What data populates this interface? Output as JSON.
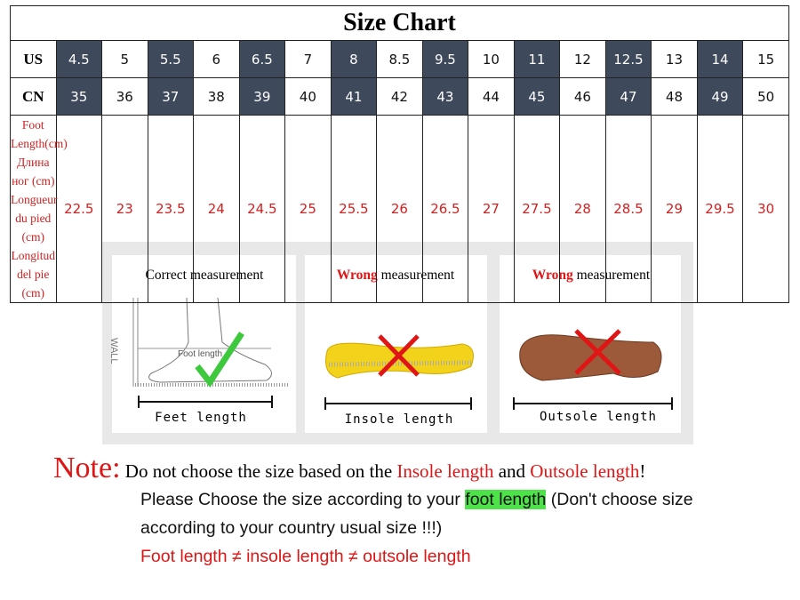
{
  "table": {
    "title": "Size Chart",
    "rows": [
      {
        "label": [
          "US"
        ],
        "values": [
          4.5,
          5,
          5.5,
          6,
          6.5,
          7,
          8,
          8.5,
          9.5,
          10,
          11,
          12,
          12.5,
          13,
          14,
          15
        ]
      },
      {
        "label": [
          "CN"
        ],
        "values": [
          35,
          36,
          37,
          38,
          39,
          40,
          41,
          42,
          43,
          44,
          45,
          46,
          47,
          48,
          49,
          50
        ]
      },
      {
        "label": [
          "Foot Length(cm)",
          "Длина ног (cm)",
          "Longueur du pied (cm)",
          "Longitud del pie (cm)"
        ],
        "values": [
          22.5,
          23,
          23.5,
          24,
          24.5,
          25,
          25.5,
          26,
          26.5,
          27,
          27.5,
          28,
          28.5,
          29,
          29.5,
          30
        ]
      }
    ]
  },
  "cards": [
    {
      "title": [
        "Correct measurement"
      ],
      "caption": "Feet length",
      "labels": [
        "WALL",
        "Foot length"
      ]
    },
    {
      "title": [
        "Wrong",
        " measurement"
      ],
      "caption": "Insole length"
    },
    {
      "title": [
        "Wrong",
        " measurement"
      ],
      "caption": "Outsole length"
    }
  ],
  "note": {
    "label": "Note:",
    "line1": [
      "Do not choose the size based on the ",
      "Insole length",
      " and ",
      "Outsole length",
      "!"
    ],
    "line2": [
      "Please Choose the size according to your ",
      "foot length",
      " (Don't choose size"
    ],
    "line3": "according to your country usual size !!!)",
    "line4": "Foot length ≠ insole length ≠ outsole length"
  }
}
